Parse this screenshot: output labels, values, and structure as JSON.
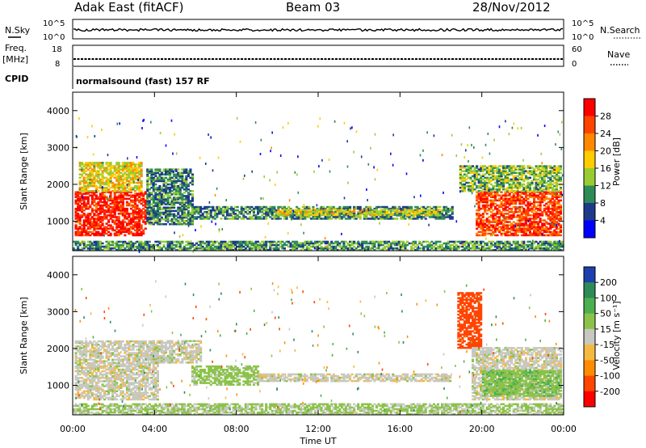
{
  "header": {
    "station": "Adak East (fitACF)",
    "beam": "Beam 03",
    "date": "28/Nov/2012"
  },
  "panels": {
    "nsky": {
      "left_label": "N.Sky",
      "right_label": "N.Search",
      "left_ticks": [
        "10^5",
        "10^0"
      ],
      "right_ticks": [
        "10^5",
        "10^0"
      ]
    },
    "freq": {
      "left_label_top": "Freq.",
      "left_label_bot": "[MHz]",
      "right_label": "Nave",
      "left_ticks": [
        "18",
        "8"
      ],
      "right_ticks": [
        "60",
        "0"
      ]
    },
    "cpid": {
      "left_label": "CPID",
      "text": "normalsound (fast) 157 RF"
    }
  },
  "colorbars": {
    "power": {
      "label": "Power [dB]",
      "ticks": [
        "28",
        "24",
        "20",
        "16",
        "12",
        "8",
        "4"
      ],
      "colors": [
        "#ff0000",
        "#ff4400",
        "#ff8800",
        "#ffcc00",
        "#99cc33",
        "#2e8b57",
        "#1e3a8a",
        "#0000ff"
      ]
    },
    "velocity": {
      "label": "Velocity [m s⁻¹]",
      "ticks": [
        "200",
        "100",
        "50",
        "15",
        "-15",
        "-50",
        "-100",
        "-200"
      ],
      "colors": [
        "#1e3fae",
        "#2e8b57",
        "#4caf50",
        "#8bc34a",
        "#c8c8c0",
        "#f5b942",
        "#ff8c00",
        "#ff4500",
        "#ff0000"
      ]
    }
  },
  "chart_data": [
    {
      "type": "heatmap",
      "title": "",
      "variable": "Power",
      "unit": "dB",
      "ylabel": "Slant Range [km]",
      "xlabel": "",
      "ylim": [
        200,
        4500
      ],
      "yticks": [
        "1000",
        "2000",
        "3000",
        "4000"
      ],
      "xticks": [
        "00:00",
        "04:00",
        "08:00",
        "12:00",
        "16:00",
        "20:00",
        "00:00"
      ],
      "xlim": [
        "00:00",
        "24:00"
      ],
      "color_scale": [
        0,
        30
      ],
      "regions": [
        {
          "t0": 0.1,
          "t1": 3.6,
          "r0": 600,
          "r1": 1800,
          "value": 27
        },
        {
          "t0": 0.3,
          "t1": 3.4,
          "r0": 1800,
          "r1": 2600,
          "value": 16
        },
        {
          "t0": 3.6,
          "t1": 5.8,
          "r0": 900,
          "r1": 2400,
          "value": 9
        },
        {
          "t0": 5.8,
          "t1": 18.6,
          "r0": 1050,
          "r1": 1400,
          "value": 9
        },
        {
          "t0": 10.0,
          "t1": 18.0,
          "r0": 1150,
          "r1": 1300,
          "value": 15
        },
        {
          "t0": 19.7,
          "t1": 23.9,
          "r0": 600,
          "r1": 1800,
          "value": 25
        },
        {
          "t0": 18.9,
          "t1": 23.9,
          "r0": 1800,
          "r1": 2500,
          "value": 12
        },
        {
          "t0": 0.0,
          "t1": 24.0,
          "r0": 200,
          "r1": 450,
          "value": 10
        }
      ]
    },
    {
      "type": "heatmap",
      "title": "",
      "variable": "Velocity",
      "unit": "m s-1",
      "ylabel": "Slant Range [km]",
      "xlabel": "Time UT",
      "ylim": [
        200,
        4500
      ],
      "yticks": [
        "1000",
        "2000",
        "3000",
        "4000"
      ],
      "xticks": [
        "00:00",
        "04:00",
        "08:00",
        "12:00",
        "16:00",
        "20:00",
        "00:00"
      ],
      "xlim": [
        "00:00",
        "24:00"
      ],
      "color_scale": [
        -250,
        250
      ],
      "regions": [
        {
          "t0": 0.1,
          "t1": 4.2,
          "r0": 600,
          "r1": 2200,
          "value": 0
        },
        {
          "t0": 3.8,
          "t1": 6.2,
          "r0": 1600,
          "r1": 2200,
          "value": 0
        },
        {
          "t0": 5.8,
          "t1": 9.0,
          "r0": 1000,
          "r1": 1500,
          "value": 30
        },
        {
          "t0": 9.0,
          "t1": 18.5,
          "r0": 1100,
          "r1": 1300,
          "value": 0
        },
        {
          "t0": 18.8,
          "t1": 20.0,
          "r0": 2000,
          "r1": 3500,
          "value": -120
        },
        {
          "t0": 19.5,
          "t1": 23.9,
          "r0": 600,
          "r1": 2000,
          "value": 0
        },
        {
          "t0": 20.0,
          "t1": 23.9,
          "r0": 700,
          "r1": 1400,
          "value": 40
        },
        {
          "t0": 0.0,
          "t1": 24.0,
          "r0": 200,
          "r1": 500,
          "value": 20
        }
      ]
    }
  ]
}
